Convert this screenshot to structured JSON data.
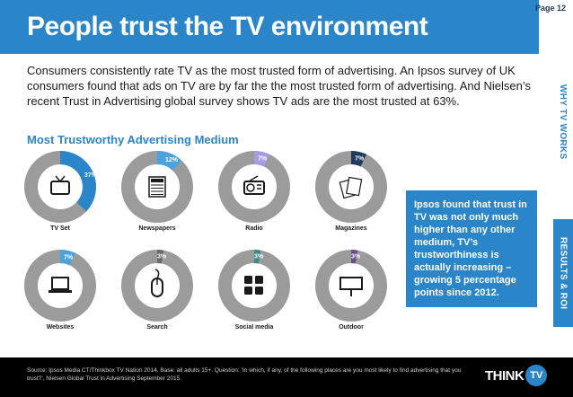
{
  "header": {
    "title": "People trust the TV environment",
    "page": "Page 12"
  },
  "side_tabs": {
    "why": "WHY TV WORKS",
    "roi": "RESULTS & ROI"
  },
  "intro": "Consumers consistently rate TV as the most trusted form of advertising. An Ipsos survey of UK consumers found that ads on TV are by far the the most trusted form of advertising. And Nielsen’s recent Trust in Advertising global survey shows TV ads are the most trusted at 63%.",
  "callout": "Ipsos found that trust in TV was not only much higher than any other medium, TV’s trustworthiness is actually increasing – growing 5 percentage points since 2012.",
  "source": "Source: Ipsos Media CT/Thinkbox TV Nation 2014. Base: all adults 15+. Question: ‘In which, if any, of the following places are you most likely to find advertising that you trust?’, Nielsen Global Trust in Advertising September 2015.",
  "logo": {
    "think": "THINK",
    "tv": "TV"
  },
  "colors": {
    "track": "#9b9b9b",
    "tv": "#2a86c8",
    "newspapers": "#4aa3df",
    "radio": "#a79be3",
    "magazines": "#1f3a5a",
    "websites": "#4aa3df",
    "search": "#6a6a6a",
    "social": "#3a8a8a",
    "outdoor": "#6b4f8a"
  },
  "chart_data": {
    "type": "pie",
    "title": "Most Trustworthy Advertising Medium",
    "categories": [
      "TV Set",
      "Newspapers",
      "Radio",
      "Magazines",
      "Websites",
      "Search",
      "Social media",
      "Outdoor"
    ],
    "values": [
      37,
      12,
      7,
      7,
      7,
      3,
      3,
      3
    ],
    "labels": [
      "37%",
      "12%",
      "7%",
      "7%",
      "7%",
      "3%",
      "3%",
      "3%"
    ],
    "icons": [
      "tv-icon",
      "newspaper-icon",
      "radio-icon",
      "magazines-icon",
      "laptop-icon",
      "mouse-icon",
      "social-icon",
      "billboard-icon"
    ],
    "colors": [
      "#2a86c8",
      "#4aa3df",
      "#a79be3",
      "#1f3a5a",
      "#4aa3df",
      "#6a6a6a",
      "#3a8a8a",
      "#6b4f8a"
    ]
  }
}
